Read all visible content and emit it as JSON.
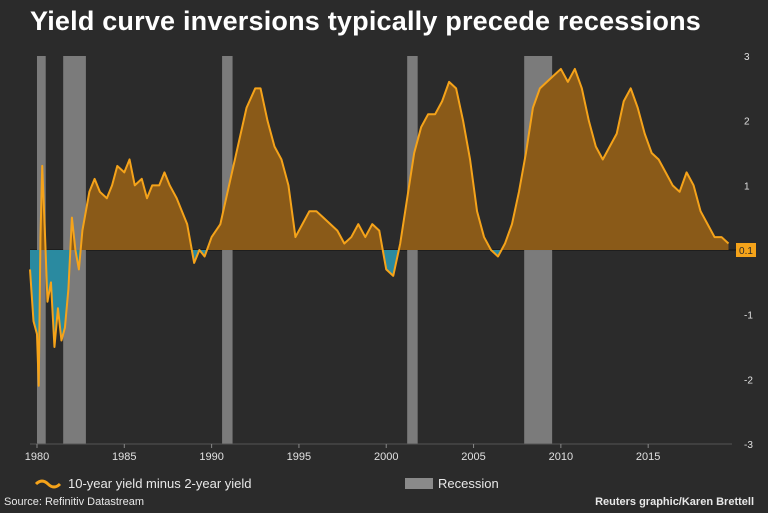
{
  "title": "Yield curve inversions typically precede recessions",
  "source": "Source: Refinitiv Datastream",
  "credit": "Reuters graphic/Karen Brettell",
  "colors": {
    "background": "#2b2b2b",
    "line": "#f5a31a",
    "positive_fill": "#8a5a18",
    "negative_fill": "#2a8aa0",
    "recession": "#8a8a8a",
    "latest_badge": "#f5a31a"
  },
  "chart_data": {
    "type": "area",
    "xlim": [
      1979.6,
      2019.8
    ],
    "ylim": [
      -3,
      3
    ],
    "x_ticks": [
      1980,
      1985,
      1990,
      1995,
      2000,
      2005,
      2010,
      2015
    ],
    "y_ticks": [
      -3,
      -2,
      -1,
      0,
      1,
      2,
      3
    ],
    "y_tick_labels": [
      "-3",
      "-2",
      "-1",
      "",
      "1",
      "2",
      "3"
    ],
    "latest_value_label": "0.1",
    "legend": [
      {
        "label": "10-year yield minus 2-year yield",
        "kind": "line"
      },
      {
        "label": "Recession",
        "kind": "box"
      }
    ],
    "recessions": [
      {
        "start": 1980.0,
        "end": 1980.5
      },
      {
        "start": 1981.5,
        "end": 1982.8
      },
      {
        "start": 1990.6,
        "end": 1991.2
      },
      {
        "start": 2001.2,
        "end": 2001.8
      },
      {
        "start": 2007.9,
        "end": 2009.5
      }
    ],
    "series": [
      {
        "name": "10-year yield minus 2-year yield",
        "x": [
          1979.6,
          1979.8,
          1980.0,
          1980.1,
          1980.2,
          1980.3,
          1980.45,
          1980.6,
          1980.8,
          1981.0,
          1981.2,
          1981.4,
          1981.6,
          1981.8,
          1982.0,
          1982.2,
          1982.4,
          1982.6,
          1982.8,
          1983.0,
          1983.3,
          1983.6,
          1984.0,
          1984.3,
          1984.6,
          1985.0,
          1985.3,
          1985.6,
          1986.0,
          1986.3,
          1986.6,
          1987.0,
          1987.3,
          1987.6,
          1988.0,
          1988.3,
          1988.6,
          1989.0,
          1989.3,
          1989.6,
          1990.0,
          1990.5,
          1991.0,
          1991.5,
          1992.0,
          1992.5,
          1992.8,
          1993.2,
          1993.6,
          1994.0,
          1994.4,
          1994.8,
          1995.2,
          1995.6,
          1996.0,
          1996.4,
          1996.8,
          1997.2,
          1997.6,
          1998.0,
          1998.4,
          1998.8,
          1999.2,
          1999.6,
          2000.0,
          2000.4,
          2000.8,
          2001.2,
          2001.6,
          2002.0,
          2002.4,
          2002.8,
          2003.2,
          2003.6,
          2004.0,
          2004.4,
          2004.8,
          2005.2,
          2005.6,
          2006.0,
          2006.4,
          2006.8,
          2007.2,
          2007.6,
          2008.0,
          2008.4,
          2008.8,
          2009.2,
          2009.6,
          2010.0,
          2010.4,
          2010.8,
          2011.2,
          2011.6,
          2012.0,
          2012.4,
          2012.8,
          2013.2,
          2013.6,
          2014.0,
          2014.4,
          2014.8,
          2015.2,
          2015.6,
          2016.0,
          2016.4,
          2016.8,
          2017.2,
          2017.6,
          2018.0,
          2018.4,
          2018.8,
          2019.2,
          2019.6
        ],
        "y": [
          -0.3,
          -1.1,
          -1.3,
          -2.1,
          0.2,
          1.3,
          0.3,
          -0.8,
          -0.5,
          -1.5,
          -0.9,
          -1.4,
          -1.2,
          -0.6,
          0.5,
          0.0,
          -0.3,
          0.3,
          0.6,
          0.9,
          1.1,
          0.9,
          0.8,
          1.0,
          1.3,
          1.2,
          1.4,
          1.0,
          1.1,
          0.8,
          1.0,
          1.0,
          1.2,
          1.0,
          0.8,
          0.6,
          0.4,
          -0.2,
          0.0,
          -0.1,
          0.2,
          0.4,
          1.0,
          1.6,
          2.2,
          2.5,
          2.5,
          2.0,
          1.6,
          1.4,
          1.0,
          0.2,
          0.4,
          0.6,
          0.6,
          0.5,
          0.4,
          0.3,
          0.1,
          0.2,
          0.4,
          0.2,
          0.4,
          0.3,
          -0.3,
          -0.4,
          0.1,
          0.8,
          1.5,
          1.9,
          2.1,
          2.1,
          2.3,
          2.6,
          2.5,
          2.0,
          1.4,
          0.6,
          0.2,
          0.0,
          -0.1,
          0.1,
          0.4,
          0.9,
          1.5,
          2.2,
          2.5,
          2.6,
          2.7,
          2.8,
          2.6,
          2.8,
          2.5,
          2.0,
          1.6,
          1.4,
          1.6,
          1.8,
          2.3,
          2.5,
          2.2,
          1.8,
          1.5,
          1.4,
          1.2,
          1.0,
          0.9,
          1.2,
          1.0,
          0.6,
          0.4,
          0.2,
          0.2,
          0.1
        ]
      }
    ]
  }
}
